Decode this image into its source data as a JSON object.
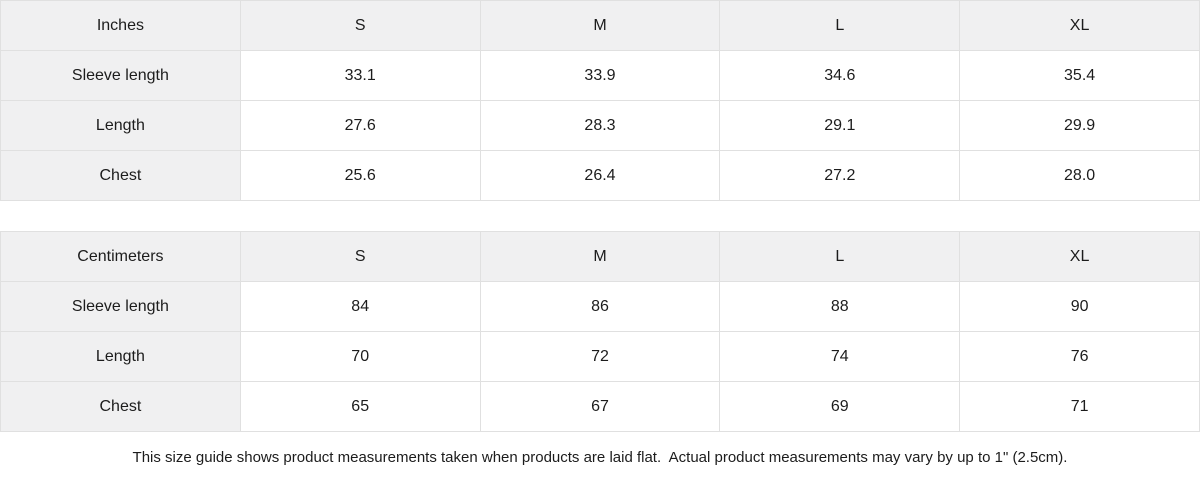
{
  "colors": {
    "header_bg": "#f0f0f1",
    "border": "#e0e0e0",
    "text": "#1c1c1c",
    "cell_bg": "#ffffff"
  },
  "tables": [
    {
      "unit": "Inches",
      "header": [
        "Inches",
        "S",
        "M",
        "L",
        "XL"
      ],
      "rows": [
        {
          "label": "Sleeve length",
          "values": [
            "33.1",
            "33.9",
            "34.6",
            "35.4"
          ]
        },
        {
          "label": "Length",
          "values": [
            "27.6",
            "28.3",
            "29.1",
            "29.9"
          ]
        },
        {
          "label": "Chest",
          "values": [
            "25.6",
            "26.4",
            "27.2",
            "28.0"
          ]
        }
      ]
    },
    {
      "unit": "Centimeters",
      "header": [
        "Centimeters",
        "S",
        "M",
        "L",
        "XL"
      ],
      "rows": [
        {
          "label": "Sleeve length",
          "values": [
            "84",
            "86",
            "88",
            "90"
          ]
        },
        {
          "label": "Length",
          "values": [
            "70",
            "72",
            "74",
            "76"
          ]
        },
        {
          "label": "Chest",
          "values": [
            "65",
            "67",
            "69",
            "71"
          ]
        }
      ]
    }
  ],
  "footer": {
    "note": "This size guide shows product measurements taken when products are laid flat.  Actual product measurements may vary by up to 1\" (2.5cm)."
  }
}
